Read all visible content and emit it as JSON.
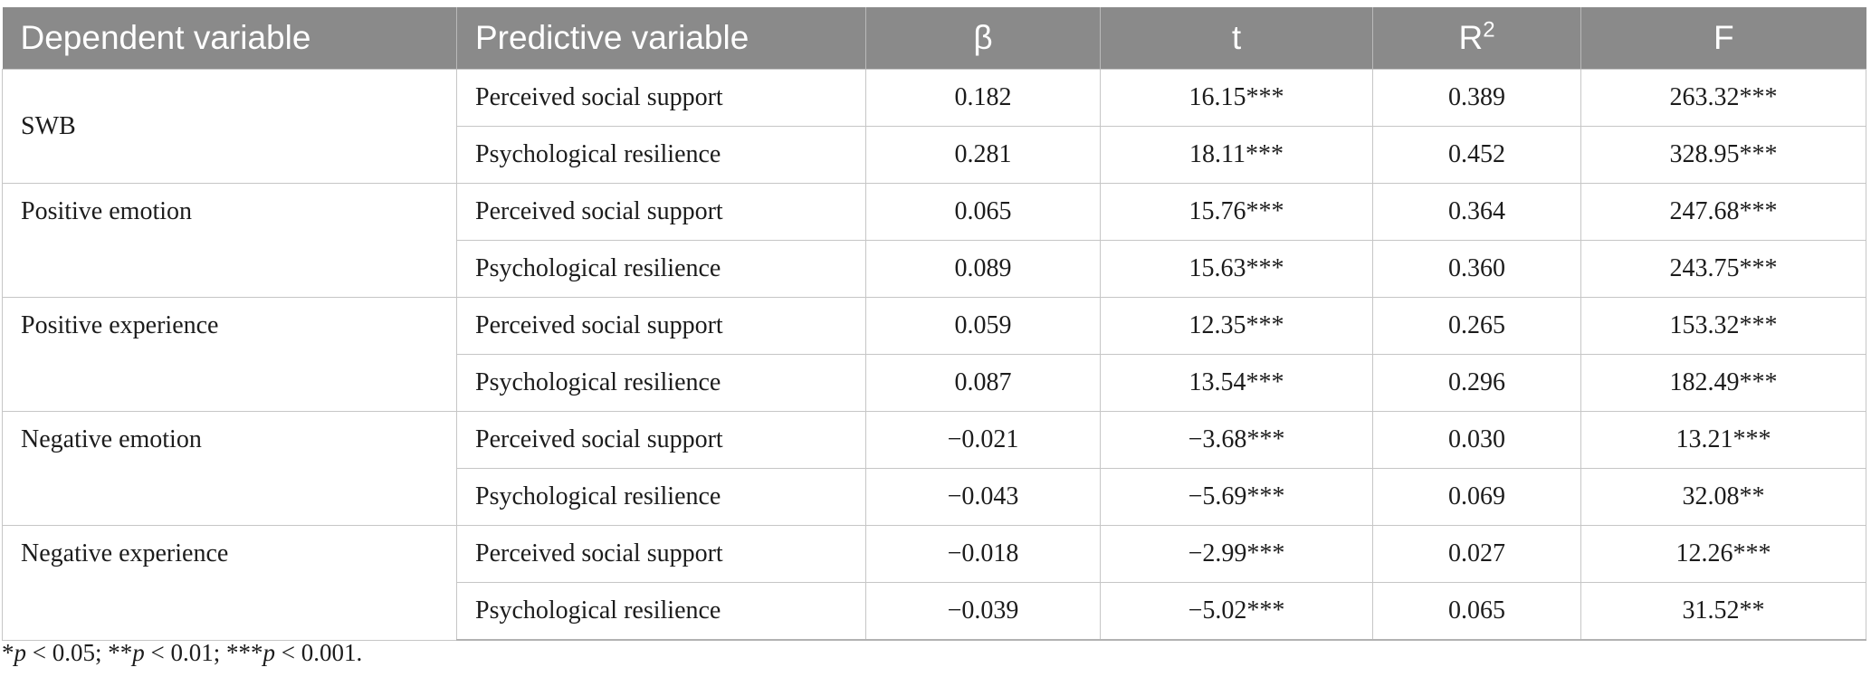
{
  "table": {
    "columns": [
      {
        "label": "Dependent variable"
      },
      {
        "label": "Predictive variable"
      },
      {
        "label": "β"
      },
      {
        "label": "t"
      },
      {
        "label": "R",
        "sup": "2"
      },
      {
        "label": "F"
      }
    ],
    "groups": [
      {
        "dependent": "SWB",
        "rows": [
          {
            "predictive": "Perceived social support",
            "beta": "0.182",
            "t": "16.15***",
            "r2": "0.389",
            "f": "263.32***"
          },
          {
            "predictive": "Psychological resilience",
            "beta": "0.281",
            "t": "18.11***",
            "r2": "0.452",
            "f": "328.95***"
          }
        ]
      },
      {
        "dependent": "Positive emotion",
        "rows": [
          {
            "predictive": "Perceived social support",
            "beta": "0.065",
            "t": "15.76***",
            "r2": "0.364",
            "f": "247.68***"
          },
          {
            "predictive": "Psychological resilience",
            "beta": "0.089",
            "t": "15.63***",
            "r2": "0.360",
            "f": "243.75***"
          }
        ]
      },
      {
        "dependent": "Positive experience",
        "rows": [
          {
            "predictive": "Perceived social support",
            "beta": "0.059",
            "t": "12.35***",
            "r2": "0.265",
            "f": "153.32***"
          },
          {
            "predictive": "Psychological resilience",
            "beta": "0.087",
            "t": "13.54***",
            "r2": "0.296",
            "f": "182.49***"
          }
        ]
      },
      {
        "dependent": "Negative emotion",
        "rows": [
          {
            "predictive": "Perceived social support",
            "beta": "−0.021",
            "t": "−3.68***",
            "r2": "0.030",
            "f": "13.21***"
          },
          {
            "predictive": "Psychological resilience",
            "beta": "−0.043",
            "t": "−5.69***",
            "r2": "0.069",
            "f": "32.08**"
          }
        ]
      },
      {
        "dependent": "Negative experience",
        "rows": [
          {
            "predictive": "Perceived social support",
            "beta": "−0.018",
            "t": "−2.99***",
            "r2": "0.027",
            "f": "12.26***"
          },
          {
            "predictive": "Psychological resilience",
            "beta": "−0.039",
            "t": "−5.02***",
            "r2": "0.065",
            "f": "31.52**"
          }
        ]
      }
    ]
  },
  "footnote": {
    "segments": [
      {
        "text": "*"
      },
      {
        "text": "p",
        "italic": true
      },
      {
        "text": " < 0.05; **"
      },
      {
        "text": "p",
        "italic": true
      },
      {
        "text": " < 0.01; ***"
      },
      {
        "text": "p",
        "italic": true
      },
      {
        "text": " < 0.001."
      }
    ]
  },
  "colors": {
    "header_background": "#8a8a8a",
    "header_text": "#ffffff",
    "body_border": "#c6c6c6",
    "body_text": "#1c1c1c"
  }
}
